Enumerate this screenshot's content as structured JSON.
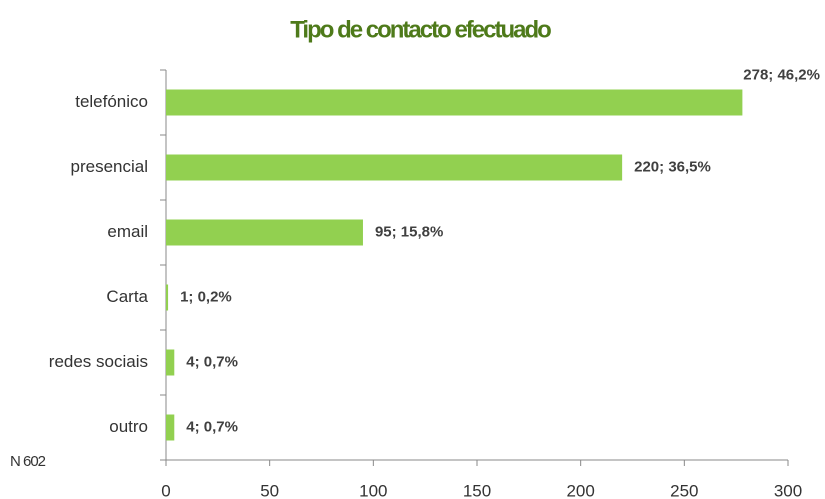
{
  "chart_data": {
    "type": "bar",
    "orientation": "horizontal",
    "title": "Tipo de contacto efectuado",
    "annotation": "N 602",
    "categories": [
      "telefónico",
      "presencial",
      "email",
      "Carta",
      "redes sociais",
      "outro"
    ],
    "values": [
      278,
      220,
      95,
      1,
      4,
      4
    ],
    "value_labels": [
      "278; 46,2%",
      "220; 36,5%",
      "95; 15,8%",
      "1; 0,2%",
      "4; 0,7%",
      "4; 0,7%"
    ],
    "color": "#92d050",
    "xlim": [
      0,
      300
    ],
    "xticks": [
      0,
      50,
      100,
      150,
      200,
      250,
      300
    ],
    "grid": false
  }
}
